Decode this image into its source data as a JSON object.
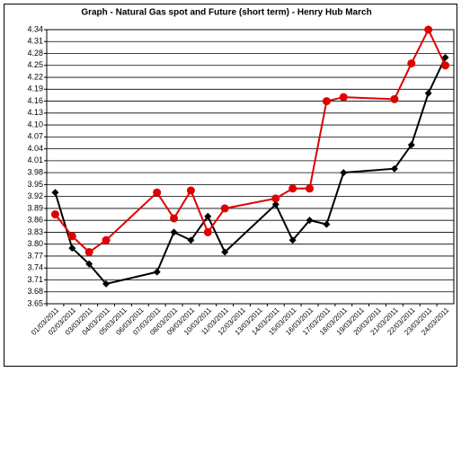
{
  "chart_data": {
    "type": "line",
    "title": "Graph - Natural Gas spot and Future (short term) - Henry Hub March",
    "categories": [
      "01/03/2011",
      "02/03/2011",
      "03/03/2011",
      "04/03/2011",
      "05/03/2011",
      "06/03/2011",
      "07/03/2011",
      "08/03/2011",
      "09/03/2011",
      "10/03/2011",
      "11/03/2011",
      "12/03/2011",
      "13/03/2011",
      "14/03/2011",
      "15/03/2011",
      "16/03/2011",
      "17/03/2011",
      "18/03/2011",
      "19/03/2011",
      "20/03/2011",
      "21/03/2011",
      "22/03/2011",
      "23/03/2011",
      "24/03/2011"
    ],
    "series": [
      {
        "color": "#000000",
        "marker": "diamond",
        "x": [
          "01/03/2011",
          "02/03/2011",
          "03/03/2011",
          "04/03/2011",
          "07/03/2011",
          "08/03/2011",
          "09/03/2011",
          "10/03/2011",
          "11/03/2011",
          "14/03/2011",
          "15/03/2011",
          "16/03/2011",
          "17/03/2011",
          "18/03/2011",
          "21/03/2011",
          "22/03/2011",
          "23/03/2011",
          "24/03/2011"
        ],
        "values": [
          3.93,
          3.79,
          3.75,
          3.7,
          3.73,
          3.83,
          3.81,
          3.87,
          3.78,
          3.9,
          3.81,
          3.86,
          3.85,
          3.98,
          3.99,
          4.05,
          4.18,
          4.27
        ]
      },
      {
        "color": "#e00000",
        "marker": "circle",
        "x": [
          "01/03/2011",
          "02/03/2011",
          "03/03/2011",
          "04/03/2011",
          "07/03/2011",
          "08/03/2011",
          "09/03/2011",
          "10/03/2011",
          "11/03/2011",
          "14/03/2011",
          "15/03/2011",
          "16/03/2011",
          "17/03/2011",
          "18/03/2011",
          "21/03/2011",
          "22/03/2011",
          "23/03/2011",
          "24/03/2011"
        ],
        "values": [
          3.875,
          3.82,
          3.78,
          3.81,
          3.93,
          3.865,
          3.935,
          3.83,
          3.89,
          3.915,
          3.94,
          3.94,
          4.16,
          4.17,
          4.165,
          4.255,
          4.34,
          4.25
        ]
      }
    ],
    "ylim": [
      3.65,
      4.34
    ],
    "yticks": [
      3.65,
      3.68,
      3.71,
      3.74,
      3.77,
      {
        "value": 3.8,
        "label": "3.80"
      },
      3.83,
      3.86,
      3.89,
      3.92,
      3.95,
      3.98,
      4.01,
      4.04,
      4.07,
      {
        "value": 4.1,
        "label": "4.10"
      },
      4.13,
      4.16,
      4.19,
      4.22,
      4.25,
      4.28,
      4.31,
      4.34
    ],
    "grid": true
  }
}
